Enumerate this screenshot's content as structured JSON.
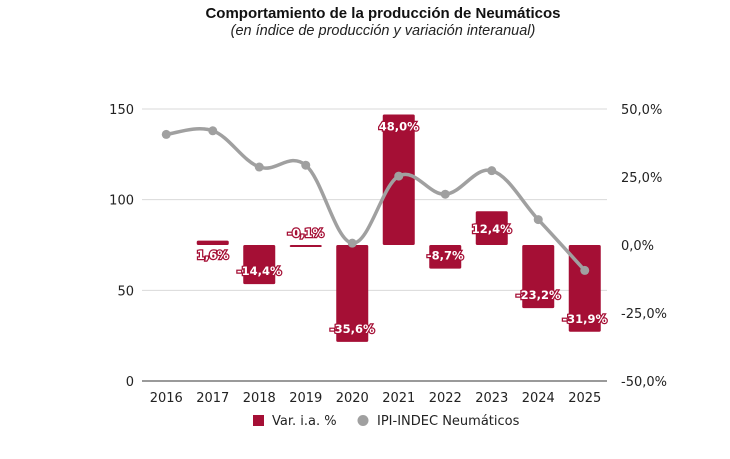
{
  "chart_data": {
    "type": "bar+line",
    "title": "Comportamiento de la producción de Neumáticos",
    "subtitle": "(en índice de producción y variación interanual)",
    "categories": [
      "2016",
      "2017",
      "2018",
      "2019",
      "2020",
      "2021",
      "2022",
      "2023",
      "2024",
      "2025"
    ],
    "series": [
      {
        "name": "Var. i.a. %",
        "type": "bar",
        "axis": "right",
        "color": "#a50f35",
        "values": [
          null,
          1.6,
          -14.4,
          -0.1,
          -35.6,
          48.0,
          -8.7,
          12.4,
          -23.2,
          -31.9
        ],
        "labels": [
          "",
          "1,6%",
          "-14,4%",
          "-0,1%",
          "-35,6%",
          "48,0%",
          "-8,7%",
          "12,4%",
          "-23,2%",
          "-31,9%"
        ]
      },
      {
        "name": "IPI-INDEC Neumáticos",
        "type": "line",
        "axis": "left",
        "color": "#a0a0a0",
        "values": [
          136,
          138,
          118,
          119,
          76,
          113,
          103,
          116,
          89,
          61
        ]
      }
    ],
    "y_left": {
      "range": [
        0,
        150
      ],
      "ticks": [
        0,
        50,
        100,
        150
      ],
      "tick_labels": [
        "0",
        "50",
        "100",
        "150"
      ]
    },
    "y_right": {
      "range": [
        -50,
        50
      ],
      "ticks": [
        -50,
        -25,
        0,
        25,
        50
      ],
      "tick_labels": [
        "-50,0%",
        "-25,0%",
        "0,0%",
        "25,0%",
        "50,0%"
      ]
    },
    "grid": true,
    "legend": {
      "position": "bottom",
      "entries": [
        "Var. i.a. %",
        "IPI-INDEC Neumáticos"
      ]
    }
  }
}
